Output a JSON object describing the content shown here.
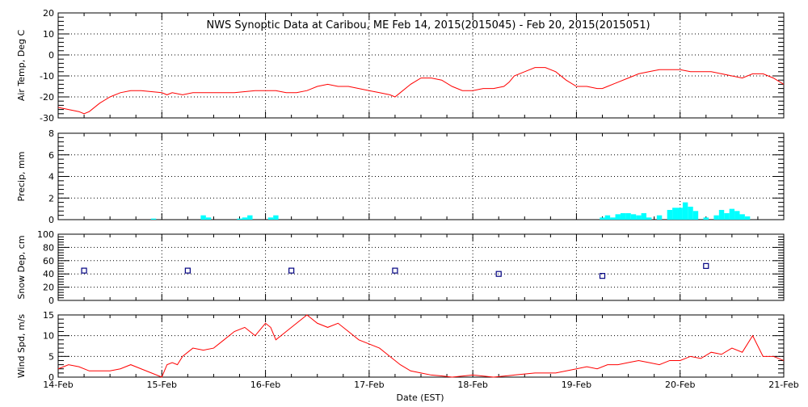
{
  "title": "NWS Synoptic Data at Caribou, ME   Feb 14, 2015(2015045) - Feb 20, 2015(2015051)",
  "x_axis": {
    "label": "Date (EST)",
    "ticks": [
      "14-Feb",
      "15-Feb",
      "16-Feb",
      "17-Feb",
      "18-Feb",
      "19-Feb",
      "20-Feb",
      "21-Feb"
    ]
  },
  "colors": {
    "temp": "#ff0000",
    "precip": "#00ffff",
    "snow": "#000080",
    "wind": "#ff0000",
    "grid": "#000000"
  },
  "chart_data": [
    {
      "type": "line",
      "ylabel": "Air Temp, Deg C",
      "ylim": [
        -30,
        20
      ],
      "yticks": [
        "20",
        "10",
        "0",
        "-10",
        "-20",
        "-30"
      ],
      "x_unit": "days since 14-Feb",
      "xlim": [
        0,
        7
      ],
      "grid": true,
      "series": [
        {
          "x": [
            0,
            0.1,
            0.2,
            0.25,
            0.3,
            0.4,
            0.5,
            0.6,
            0.7,
            0.8,
            1.0,
            1.05,
            1.1,
            1.2,
            1.3,
            1.5,
            1.7,
            1.9,
            2.0,
            2.1,
            2.2,
            2.3,
            2.4,
            2.5,
            2.6,
            2.7,
            2.8,
            2.9,
            3.0,
            3.1,
            3.2,
            3.25,
            3.3,
            3.4,
            3.5,
            3.6,
            3.7,
            3.8,
            3.9,
            4.0,
            4.1,
            4.2,
            4.3,
            4.35,
            4.4,
            4.5,
            4.6,
            4.7,
            4.8,
            4.9,
            5.0,
            5.1,
            5.2,
            5.25,
            5.3,
            5.4,
            5.5,
            5.6,
            5.7,
            5.8,
            5.9,
            6.0,
            6.1,
            6.2,
            6.3,
            6.4,
            6.5,
            6.6,
            6.7,
            6.8,
            6.9,
            7.0
          ],
          "y": [
            -25,
            -26,
            -27,
            -28,
            -27,
            -23,
            -20,
            -18,
            -17,
            -17,
            -18,
            -19,
            -18,
            -19,
            -18,
            -18,
            -18,
            -17,
            -17,
            -17,
            -18,
            -18,
            -17,
            -15,
            -14,
            -15,
            -15,
            -16,
            -17,
            -18,
            -19,
            -20,
            -18,
            -14,
            -11,
            -11,
            -12,
            -15,
            -17,
            -17,
            -16,
            -16,
            -15,
            -13,
            -10,
            -8,
            -6,
            -6,
            -8,
            -12,
            -15,
            -15,
            -16,
            -16,
            -15,
            -13,
            -11,
            -9,
            -8,
            -7,
            -7,
            -7,
            -8,
            -8,
            -8,
            -9,
            -10,
            -11,
            -9,
            -9,
            -11,
            -14
          ]
        }
      ]
    },
    {
      "type": "bar",
      "ylabel": "Precip, mm",
      "ylim": [
        0,
        8
      ],
      "yticks": [
        "8",
        "6",
        "4",
        "2",
        "0"
      ],
      "x_unit": "days since 14-Feb",
      "xlim": [
        0,
        7
      ],
      "grid": true,
      "series": [
        {
          "x": [
            0.92,
            1.4,
            1.45,
            1.75,
            1.8,
            1.85,
            2.05,
            2.1,
            5.25,
            5.3,
            5.35,
            5.4,
            5.45,
            5.5,
            5.55,
            5.6,
            5.65,
            5.7,
            5.8,
            5.9,
            5.95,
            6.0,
            6.05,
            6.1,
            6.15,
            6.25,
            6.35,
            6.4,
            6.45,
            6.5,
            6.55,
            6.6,
            6.65
          ],
          "y": [
            0.1,
            0.4,
            0.2,
            0.1,
            0.2,
            0.4,
            0.2,
            0.4,
            0.2,
            0.4,
            0.2,
            0.5,
            0.6,
            0.6,
            0.5,
            0.4,
            0.6,
            0.2,
            0.4,
            0.9,
            1.1,
            1.1,
            1.6,
            1.2,
            0.8,
            0.2,
            0.4,
            0.9,
            0.6,
            1.0,
            0.8,
            0.5,
            0.3
          ]
        }
      ]
    },
    {
      "type": "scatter",
      "ylabel": "Snow Dep, cm",
      "ylim": [
        0,
        100
      ],
      "yticks": [
        "100",
        "80",
        "60",
        "40",
        "20",
        "0"
      ],
      "x_unit": "days since 14-Feb",
      "xlim": [
        0,
        7
      ],
      "grid": true,
      "series": [
        {
          "x": [
            0.25,
            1.25,
            2.25,
            3.25,
            4.25,
            5.25,
            6.25
          ],
          "y": [
            45,
            45,
            45,
            45,
            40,
            37,
            52
          ]
        }
      ]
    },
    {
      "type": "line",
      "ylabel": "Wind Spd, m/s",
      "ylim": [
        0,
        15
      ],
      "yticks": [
        "15",
        "10",
        "5",
        "0"
      ],
      "x_unit": "days since 14-Feb",
      "xlim": [
        0,
        7
      ],
      "grid": true,
      "series": [
        {
          "x": [
            0,
            0.1,
            0.2,
            0.3,
            0.4,
            0.5,
            0.6,
            0.7,
            0.8,
            0.9,
            1.0,
            1.05,
            1.1,
            1.15,
            1.2,
            1.3,
            1.4,
            1.5,
            1.6,
            1.7,
            1.8,
            1.9,
            2.0,
            2.05,
            2.1,
            2.2,
            2.3,
            2.4,
            2.5,
            2.6,
            2.7,
            2.8,
            2.9,
            3.0,
            3.1,
            3.2,
            3.3,
            3.4,
            3.5,
            3.6,
            3.7,
            3.8,
            4.0,
            4.2,
            4.4,
            4.6,
            4.8,
            5.0,
            5.1,
            5.2,
            5.3,
            5.4,
            5.5,
            5.6,
            5.7,
            5.8,
            5.9,
            6.0,
            6.1,
            6.2,
            6.3,
            6.4,
            6.5,
            6.6,
            6.7,
            6.8,
            6.9,
            7.0
          ],
          "y": [
            2,
            3,
            2.5,
            1.5,
            1.5,
            1.5,
            2,
            3,
            2,
            1,
            0,
            3,
            3.5,
            3,
            5,
            7,
            6.5,
            7,
            9,
            11,
            12,
            10,
            13,
            12,
            9,
            11,
            13,
            15,
            13,
            12,
            13,
            11,
            9,
            8,
            7,
            5,
            3,
            1.5,
            1,
            0.5,
            0.3,
            0,
            0.5,
            0,
            0.5,
            1,
            1,
            2,
            2.5,
            2,
            3,
            3,
            3.5,
            4,
            3.5,
            3,
            4,
            4,
            5,
            4.5,
            6,
            5.5,
            7,
            6,
            10,
            5,
            5,
            4
          ]
        }
      ]
    }
  ]
}
